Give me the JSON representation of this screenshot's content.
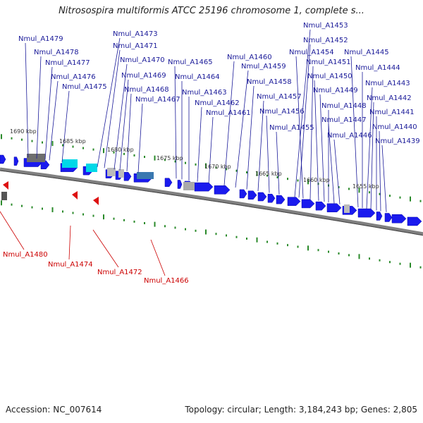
{
  "title": "Nitrosospira multiformis ATCC 25196 chromosome 1, complete s...",
  "footer": {
    "accession": "Accession: NC_007614",
    "topology": "Topology: circular; Length: 3,184,243 bp; Genes: 2,805"
  },
  "colors": {
    "forward_gene": "#1a1aee",
    "reverse_gene": "#dd1111",
    "backbone": "#808080",
    "tick": "#2a8a2a",
    "label_forward": "#1a1a99",
    "label_reverse": "#cc0000",
    "rna": "#00d8e8",
    "other": "#6e6e6e"
  },
  "kbp_labels": [
    "1690 kbp",
    "1685 kbp",
    "1680 kbp",
    "1675 kbp",
    "1670 kbp",
    "1665 kbp",
    "1660 kbp",
    "1655 kbp"
  ],
  "forward_genes": [
    "Nmul_A1479",
    "Nmul_A1478",
    "Nmul_A1477",
    "Nmul_A1476",
    "Nmul_A1475",
    "Nmul_A1473",
    "Nmul_A1471",
    "Nmul_A1470",
    "Nmul_A1469",
    "Nmul_A1468",
    "Nmul_A1467",
    "Nmul_A1465",
    "Nmul_A1464",
    "Nmul_A1463",
    "Nmul_A1462",
    "Nmul_A1461",
    "Nmul_A1460",
    "Nmul_A1459",
    "Nmul_A1458",
    "Nmul_A1457",
    "Nmul_A1456",
    "Nmul_A1455",
    "Nmul_A1453",
    "Nmul_A1452",
    "Nmul_A1454",
    "Nmul_A1451",
    "Nmul_A1450",
    "Nmul_A1449",
    "Nmul_A1448",
    "Nmul_A1447",
    "Nmul_A1446",
    "Nmul_A1445",
    "Nmul_A1444",
    "Nmul_A1443",
    "Nmul_A1442",
    "Nmul_A1441",
    "Nmul_A1440",
    "Nmul_A1439"
  ],
  "reverse_genes": [
    "Nmul_A1480",
    "Nmul_A1474",
    "Nmul_A1472",
    "Nmul_A1466"
  ]
}
